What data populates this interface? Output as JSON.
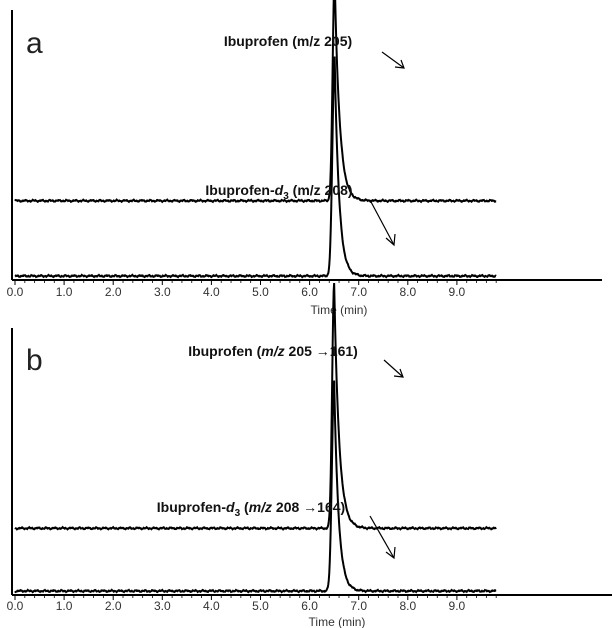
{
  "chart_data": [
    {
      "type": "line",
      "panel_label": "a",
      "xlabel": "Time (min)",
      "xlim": [
        0.0,
        9.8
      ],
      "x_ticks": [
        "0.0",
        "1.0",
        "2.0",
        "3.0",
        "4.0",
        "5.0",
        "6.0",
        "7.0",
        "8.0",
        "9.0"
      ],
      "series": [
        {
          "name": "Ibuprofen (m/z 205)",
          "baseline": 0.295,
          "peak": {
            "apex_time": 6.51,
            "height": 0.88,
            "sigma_left": 0.04,
            "tail_tau": 0.1
          }
        },
        {
          "name": "Ibuprofen-d3 (m/z 208)",
          "baseline": 0.0,
          "peak": {
            "apex_time": 6.51,
            "height": 0.86,
            "sigma_left": 0.045,
            "tail_tau": 0.09
          }
        }
      ],
      "annotations": [
        {
          "text": "Ibuprofen (m/z 205)",
          "target_series": 0
        },
        {
          "text_main": "Ibuprofen-",
          "text_italic": "d",
          "text_sub": "3",
          "text_rest": " (m/z 208)",
          "target_series": 1
        }
      ]
    },
    {
      "type": "line",
      "panel_label": "b",
      "xlabel": "Time (min)",
      "xlim": [
        0.0,
        9.8
      ],
      "x_ticks": [
        "0.0",
        "1.0",
        "2.0",
        "3.0",
        "4.0",
        "5.0",
        "6.0",
        "7.0",
        "8.0",
        "9.0"
      ],
      "series": [
        {
          "name": "Ibuprofen (m/z 205→161)",
          "baseline": 0.245,
          "peak": {
            "apex_time": 6.5,
            "height": 0.96,
            "sigma_left": 0.04,
            "tail_tau": 0.1
          }
        },
        {
          "name": "Ibuprofen-d3 (m/z 208→164)",
          "baseline": 0.0,
          "peak": {
            "apex_time": 6.5,
            "height": 0.82,
            "sigma_left": 0.045,
            "tail_tau": 0.09
          }
        }
      ],
      "annotations": [
        {
          "text_main": "Ibuprofen (",
          "text_italic": "m/z",
          "text_rest": " 205 →161)",
          "target_series": 0
        },
        {
          "text_main": "Ibuprofen-",
          "text_italic": "d",
          "text_sub": "3",
          "text_paren": " (",
          "text_italic2": "m/z",
          "text_rest": " 208 →164)",
          "target_series": 1
        }
      ]
    }
  ]
}
